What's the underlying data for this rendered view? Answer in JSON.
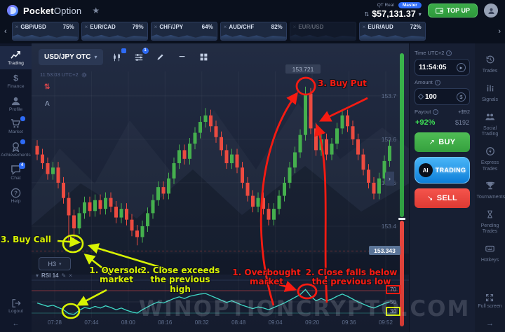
{
  "header": {
    "brand_bold": "Pocket",
    "brand_rest": "Option",
    "account_type": "QT Real",
    "account_tier": "Master",
    "balance": "$57,131.37",
    "top_up_label": "TOP UP"
  },
  "tabs": {
    "items": [
      {
        "pair": "GBP/USD",
        "payout": "75%"
      },
      {
        "pair": "EUR/CAD",
        "payout": "79%"
      },
      {
        "pair": "CHF/JPY",
        "payout": "64%"
      },
      {
        "pair": "AUD/CHF",
        "payout": "82%"
      },
      {
        "pair": "EUR/USD",
        "payout": ""
      },
      {
        "pair": "EUR/AUD",
        "payout": "72%"
      }
    ]
  },
  "sidebar": {
    "items": [
      {
        "label": "Trading",
        "icon": "chart",
        "active": true
      },
      {
        "label": "Finance",
        "icon": "dollar"
      },
      {
        "label": "Profile",
        "icon": "user"
      },
      {
        "label": "Market",
        "icon": "cart",
        "badge": "dot"
      },
      {
        "label": "Achievements",
        "icon": "award",
        "badge": "dot"
      },
      {
        "label": "Chat",
        "icon": "chat",
        "badge": "4"
      },
      {
        "label": "Help",
        "icon": "help"
      }
    ],
    "logout_label": "Logout"
  },
  "chart": {
    "symbol": "USD/JPY OTC",
    "clock": "11:53:03 UTC+2",
    "timeframe": "H3",
    "indicator_label": "RSI 14",
    "indicator_badge": "1",
    "current_price": "153.343",
    "peak_price": "153.721",
    "rsi_levels": [
      "70",
      "50",
      "30"
    ],
    "time_axis": [
      "07:28",
      "07:44",
      "08:00",
      "08:16",
      "08:32",
      "08:48",
      "09:04",
      "09:20",
      "09:36",
      "09:52"
    ],
    "full_screen_label": "Full screen"
  },
  "chart_data": {
    "type": "candlestick",
    "symbol": "USD/JPY OTC",
    "ylim": [
      153.35,
      153.74
    ],
    "price_axis": [
      153.7,
      153.6,
      153.5,
      153.4
    ],
    "current_price": 153.343,
    "open0": 153.585,
    "wick": 0.013,
    "closes": [
      153.565,
      153.545,
      153.52,
      153.535,
      153.5,
      153.465,
      153.425,
      153.395,
      153.43,
      153.455,
      153.435,
      153.46,
      153.44,
      153.465,
      153.445,
      153.42,
      153.44,
      153.415,
      153.39,
      153.375,
      153.4,
      153.43,
      153.46,
      153.49,
      153.475,
      153.51,
      153.545,
      153.575,
      153.555,
      153.59,
      153.615,
      153.64,
      153.655,
      153.63,
      153.605,
      153.575,
      153.545,
      153.565,
      153.535,
      153.5,
      153.47,
      153.445,
      153.465,
      153.44,
      153.415,
      153.44,
      153.47,
      153.5,
      153.535,
      153.57,
      153.61,
      153.705,
      153.625,
      153.575,
      153.6,
      153.565,
      153.59,
      153.625,
      153.655,
      153.63,
      153.6,
      153.565,
      153.53,
      153.5,
      153.475,
      153.51,
      153.55,
      153.585
    ],
    "special_high": {
      "32": 153.672,
      "51": 153.721
    },
    "special_low": {
      "6": 153.363,
      "7": 153.367,
      "19": 153.356
    },
    "rsi": [
      48,
      45,
      42,
      44,
      40,
      36,
      29,
      27.5,
      35,
      40,
      38,
      42,
      39,
      43,
      40,
      36,
      39,
      35,
      32,
      30,
      36,
      41,
      46,
      50,
      48,
      52,
      56,
      59,
      56,
      60,
      62,
      64,
      65,
      61,
      57,
      53,
      49,
      52,
      48,
      44,
      41,
      38,
      41,
      39,
      36,
      40,
      44,
      48,
      53,
      58,
      63,
      72,
      60,
      52,
      56,
      52,
      55,
      60,
      64,
      60,
      55,
      50,
      46,
      42,
      39,
      43,
      47,
      50
    ],
    "rsi_levels": [
      70,
      50,
      30
    ],
    "colors": {
      "up": "#45b04e",
      "down": "#ec4b40",
      "rsi": "#3fd9c6"
    }
  },
  "trade_panel": {
    "time_label": "Time UTC+2",
    "time_value": "11:54:05",
    "amount_label": "Amount",
    "amount_value": "100",
    "payout_label": "Payout",
    "payout_delta": "+$92",
    "payout_percent": "+92%",
    "payout_total": "$192",
    "buy_label": "BUY",
    "ai_short": "AI",
    "ai_label": "TRADING",
    "sell_label": "SELL"
  },
  "rail": {
    "items": [
      {
        "label": "Trades",
        "icon": "history"
      },
      {
        "label": "Signals",
        "icon": "signals"
      },
      {
        "label": "Social Trading",
        "icon": "people"
      },
      {
        "label": "Express Trades",
        "icon": "express"
      },
      {
        "label": "Tournaments",
        "icon": "trophy"
      },
      {
        "label": "Pending Trades",
        "icon": "pending"
      },
      {
        "label": "Hotkeys",
        "icon": "hotkeys"
      }
    ]
  },
  "annotations": {
    "buy_call": "3. Buy Call",
    "oversold": "1. Oversold market",
    "close_exceeds": "2. Close exceeds the previous high",
    "overbought": "1. Overbought market",
    "close_falls": "2. Close falls below the previous low",
    "buy_put": "3. Buy Put",
    "watermark": "WINOPTIONCRYPTO.COM"
  }
}
